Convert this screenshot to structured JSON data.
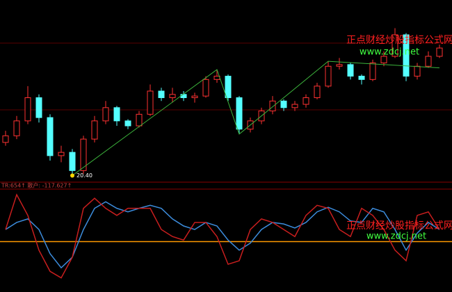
{
  "chart_data": [
    {
      "type": "candlestick",
      "categories": [
        null,
        null,
        null,
        null,
        null,
        null,
        null,
        null,
        null,
        null,
        null,
        null,
        null,
        null,
        null,
        null,
        null,
        null,
        null,
        null,
        null,
        null,
        null,
        null,
        null,
        null,
        null,
        null,
        null,
        null,
        null,
        null,
        null,
        null,
        null,
        null,
        null,
        null,
        null,
        null
      ],
      "open": [
        22.4,
        22.8,
        23.7,
        25.1,
        23.9,
        21.6,
        21.8,
        20.7,
        22.6,
        23.7,
        24.5,
        23.7,
        23.4,
        24.1,
        25.5,
        25.1,
        25.3,
        25.1,
        25.2,
        26.2,
        26.4,
        25.1,
        23.2,
        23.7,
        24.3,
        24.9,
        24.5,
        24.7,
        25.1,
        25.8,
        27.0,
        27.1,
        26.4,
        26.2,
        27.2,
        27.6,
        28.9,
        26.4,
        27.0,
        27.6
      ],
      "high": [
        23.1,
        24.0,
        25.8,
        25.3,
        24.1,
        22.2,
        22.0,
        22.8,
        24.0,
        24.9,
        24.6,
        23.8,
        24.3,
        25.9,
        25.7,
        25.7,
        25.5,
        25.4,
        26.4,
        26.8,
        26.5,
        25.2,
        23.9,
        24.5,
        25.2,
        25.0,
        24.9,
        25.3,
        26.0,
        27.3,
        27.5,
        27.2,
        26.5,
        27.4,
        27.9,
        29.3,
        29.0,
        27.2,
        27.9,
        28.3
      ],
      "low": [
        22.2,
        22.6,
        23.5,
        23.6,
        21.3,
        21.2,
        20.4,
        20.5,
        22.4,
        23.5,
        23.4,
        23.2,
        23.3,
        24.0,
        24.9,
        24.8,
        24.9,
        24.8,
        25.1,
        26.0,
        24.9,
        22.9,
        23.0,
        23.5,
        24.1,
        24.3,
        24.3,
        24.5,
        25.0,
        25.7,
        26.8,
        26.2,
        25.9,
        26.1,
        27.0,
        27.5,
        26.1,
        26.2,
        26.9,
        27.5
      ],
      "close": [
        22.8,
        23.7,
        25.1,
        23.9,
        21.6,
        21.8,
        20.7,
        22.6,
        23.7,
        24.5,
        23.7,
        23.4,
        24.1,
        25.5,
        25.1,
        25.3,
        25.1,
        25.2,
        26.2,
        26.4,
        25.1,
        23.2,
        23.7,
        24.3,
        24.9,
        24.5,
        24.7,
        25.1,
        25.8,
        27.0,
        27.1,
        26.4,
        26.2,
        27.2,
        27.6,
        28.9,
        26.4,
        27.0,
        27.6,
        28.1
      ],
      "up_color": "#ff3232",
      "down_color": "#54ffff",
      "ylim": [
        20,
        31
      ],
      "trend": {
        "color": "#3cb43c",
        "x": [
          6,
          19,
          21,
          29,
          39
        ],
        "values": [
          20.4,
          26.8,
          22.9,
          27.3,
          26.9
        ]
      },
      "annotation": {
        "x": 6,
        "value": 20.4,
        "label": "20.40"
      },
      "watermark": {
        "title": "正点财经炒股指标公式网",
        "url": "www.zdcj.net"
      }
    },
    {
      "type": "line",
      "header": "TR:654↑  散户: -117.627↑",
      "ylim": [
        -100,
        100
      ],
      "reference_line": {
        "value": 0,
        "color": "#ff9900"
      },
      "series": [
        {
          "color": "#3c8cdc",
          "values": [
            24,
            38,
            45,
            24,
            -24,
            -52,
            -31,
            24,
            66,
            79,
            66,
            59,
            66,
            72,
            66,
            45,
            31,
            24,
            38,
            31,
            3,
            -17,
            -3,
            24,
            38,
            35,
            27,
            38,
            59,
            68,
            59,
            41,
            38,
            66,
            59,
            24,
            -17,
            17,
            38,
            24
          ]
        },
        {
          "color": "#c81e1e",
          "values": [
            24,
            93,
            52,
            -17,
            -59,
            -72,
            -31,
            66,
            86,
            66,
            52,
            66,
            66,
            66,
            24,
            10,
            3,
            38,
            38,
            10,
            -45,
            -38,
            24,
            45,
            38,
            24,
            10,
            52,
            72,
            66,
            24,
            10,
            66,
            52,
            24,
            -17,
            -38,
            52,
            59,
            24
          ]
        }
      ]
    }
  ]
}
